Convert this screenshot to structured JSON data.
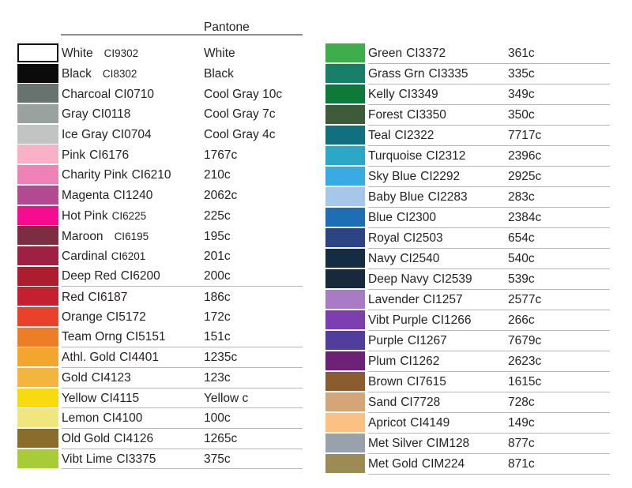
{
  "chart_data": {
    "type": "table",
    "column_headers": {
      "pantone": "Pantone"
    },
    "columns_meaning": [
      "color_swatch",
      "color_name",
      "ci_code",
      "pantone_code"
    ],
    "left_rows": [
      {
        "name": "White",
        "code": "CI9302",
        "pantone": "White",
        "hex": "#ffffff",
        "underline": false,
        "small_code": true,
        "wide_gap": true
      },
      {
        "name": "Black",
        "code": "CI8302",
        "pantone": "Black",
        "hex": "#0b0b0b",
        "underline": false,
        "small_code": true,
        "wide_gap": true
      },
      {
        "name": "Charcoal",
        "code": "CI0710",
        "pantone": "Cool Gray 10c",
        "hex": "#687370",
        "underline": false,
        "small_code": false,
        "wide_gap": false
      },
      {
        "name": "Gray",
        "code": "CI0118",
        "pantone": "Cool Gray 7c",
        "hex": "#9aa29f",
        "underline": false,
        "small_code": false,
        "wide_gap": false
      },
      {
        "name": "Ice Gray",
        "code": "CI0704",
        "pantone": "Cool Gray 4c",
        "hex": "#c1c4c2",
        "underline": false,
        "small_code": false,
        "wide_gap": false
      },
      {
        "name": "Pink",
        "code": "CI6176",
        "pantone": "1767c",
        "hex": "#f8b1c7",
        "underline": false,
        "small_code": false,
        "wide_gap": false
      },
      {
        "name": "Charity Pink",
        "code": "CI6210",
        "pantone": "210c",
        "hex": "#ee82b6",
        "underline": false,
        "small_code": false,
        "wide_gap": false
      },
      {
        "name": "Magenta",
        "code": "CI1240",
        "pantone": "2062c",
        "hex": "#b14a90",
        "underline": false,
        "small_code": false,
        "wide_gap": false
      },
      {
        "name": "Hot Pink",
        "code": "CI6225",
        "pantone": "225c",
        "hex": "#f40d90",
        "underline": false,
        "small_code": true,
        "wide_gap": false
      },
      {
        "name": "Maroon",
        "code": "CI6195",
        "pantone": "195c",
        "hex": "#7e2c41",
        "underline": false,
        "small_code": true,
        "wide_gap": true
      },
      {
        "name": "Cardinal",
        "code": "CI6201",
        "pantone": "201c",
        "hex": "#9e2043",
        "underline": false,
        "small_code": true,
        "wide_gap": false
      },
      {
        "name": "Deep Red",
        "code": "CI6200",
        "pantone": "200c",
        "hex": "#ac1e2d",
        "underline": true,
        "small_code": false,
        "wide_gap": false
      },
      {
        "name": "Red",
        "code": "CI6187",
        "pantone": "186c",
        "hex": "#c42032",
        "underline": false,
        "small_code": false,
        "wide_gap": false
      },
      {
        "name": "Orange",
        "code": "CI5172",
        "pantone": "172c",
        "hex": "#e8432a",
        "underline": false,
        "small_code": false,
        "wide_gap": false
      },
      {
        "name": "Team Orng",
        "code": "CI5151",
        "pantone": "151c",
        "hex": "#ee7e26",
        "underline": true,
        "small_code": false,
        "wide_gap": false
      },
      {
        "name": "Athl. Gold",
        "code": "CI4401",
        "pantone": "1235c",
        "hex": "#f2a52f",
        "underline": true,
        "small_code": false,
        "wide_gap": false
      },
      {
        "name": "Gold",
        "code": "CI4123",
        "pantone": "123c",
        "hex": "#f4b440",
        "underline": true,
        "small_code": false,
        "wide_gap": false
      },
      {
        "name": "Yellow",
        "code": "CI4115",
        "pantone": "Yellow c",
        "hex": "#f8da11",
        "underline": true,
        "small_code": false,
        "wide_gap": false
      },
      {
        "name": "Lemon",
        "code": "CI4100",
        "pantone": "100c",
        "hex": "#f0e67e",
        "underline": true,
        "small_code": false,
        "wide_gap": false
      },
      {
        "name": "Old Gold",
        "code": "CI4126",
        "pantone": "1265c",
        "hex": "#8a6c2b",
        "underline": true,
        "small_code": false,
        "wide_gap": false
      },
      {
        "name": "Vibt Lime",
        "code": "CI3375",
        "pantone": "375c",
        "hex": "#a8cb38",
        "underline": true,
        "small_code": false,
        "wide_gap": false
      }
    ],
    "right_rows": [
      {
        "name": "Green",
        "code": "CI3372",
        "pantone": "361c",
        "hex": "#3eae4c",
        "underline": true,
        "small_code": false,
        "wide_gap": false
      },
      {
        "name": "Grass Grn",
        "code": "CI3335",
        "pantone": "335c",
        "hex": "#168069",
        "underline": true,
        "small_code": false,
        "wide_gap": false
      },
      {
        "name": "Kelly",
        "code": "CI3349",
        "pantone": "349c",
        "hex": "#0e7a3a",
        "underline": true,
        "small_code": false,
        "wide_gap": false
      },
      {
        "name": "Forest",
        "code": "CI3350",
        "pantone": "350c",
        "hex": "#3d5a39",
        "underline": true,
        "small_code": false,
        "wide_gap": false
      },
      {
        "name": "Teal",
        "code": "CI2322",
        "pantone": "7717c",
        "hex": "#107080",
        "underline": true,
        "small_code": false,
        "wide_gap": false
      },
      {
        "name": "Turquoise",
        "code": "CI2312",
        "pantone": "2396c",
        "hex": "#2ba8c8",
        "underline": true,
        "small_code": false,
        "wide_gap": false
      },
      {
        "name": "Sky Blue",
        "code": "CI2292",
        "pantone": "2925c",
        "hex": "#38abe2",
        "underline": true,
        "small_code": false,
        "wide_gap": false
      },
      {
        "name": "Baby Blue",
        "code": "CI2283",
        "pantone": "283c",
        "hex": "#a4c7ea",
        "underline": true,
        "small_code": false,
        "wide_gap": false
      },
      {
        "name": "Blue",
        "code": "CI2300",
        "pantone": "2384c",
        "hex": "#1d6eb3",
        "underline": true,
        "small_code": false,
        "wide_gap": false
      },
      {
        "name": "Royal",
        "code": "CI2503",
        "pantone": "654c",
        "hex": "#2b4584",
        "underline": true,
        "small_code": false,
        "wide_gap": false
      },
      {
        "name": "Navy",
        "code": "CI2540",
        "pantone": "540c",
        "hex": "#142c44",
        "underline": true,
        "small_code": false,
        "wide_gap": false
      },
      {
        "name": "Deep Navy",
        "code": "CI2539",
        "pantone": "539c",
        "hex": "#17293a",
        "underline": true,
        "small_code": false,
        "wide_gap": false
      },
      {
        "name": "Lavender",
        "code": "CI1257",
        "pantone": "2577c",
        "hex": "#a97bc4",
        "underline": true,
        "small_code": false,
        "wide_gap": false
      },
      {
        "name": "Vibt Purple",
        "code": "CI1266",
        "pantone": "266c",
        "hex": "#7d3fb0",
        "underline": true,
        "small_code": false,
        "wide_gap": false
      },
      {
        "name": "Purple",
        "code": "CI1267",
        "pantone": "7679c",
        "hex": "#503d9e",
        "underline": true,
        "small_code": false,
        "wide_gap": false
      },
      {
        "name": "Plum",
        "code": "CI1262",
        "pantone": "2623c",
        "hex": "#6e2277",
        "underline": true,
        "small_code": false,
        "wide_gap": false
      },
      {
        "name": "Brown",
        "code": "CI7615",
        "pantone": "1615c",
        "hex": "#8b5c30",
        "underline": true,
        "small_code": false,
        "wide_gap": false
      },
      {
        "name": "Sand",
        "code": "CI7728",
        "pantone": "728c",
        "hex": "#d3a577",
        "underline": true,
        "small_code": false,
        "wide_gap": false
      },
      {
        "name": "Apricot",
        "code": "CI4149",
        "pantone": "149c",
        "hex": "#fbc183",
        "underline": true,
        "small_code": false,
        "wide_gap": false
      },
      {
        "name": "Met Silver",
        "code": "CIM128",
        "pantone": "877c",
        "hex": "#98a1ac",
        "underline": true,
        "small_code": false,
        "wide_gap": false
      },
      {
        "name": "Met Gold",
        "code": "CIM224",
        "pantone": "871c",
        "hex": "#9c8b54",
        "underline": true,
        "small_code": false,
        "wide_gap": false
      }
    ],
    "style_colors": {
      "text": "#262223",
      "header_rule": "#8e8e8e",
      "row_divider": "#b6b6b6",
      "background": "#ffffff"
    }
  }
}
